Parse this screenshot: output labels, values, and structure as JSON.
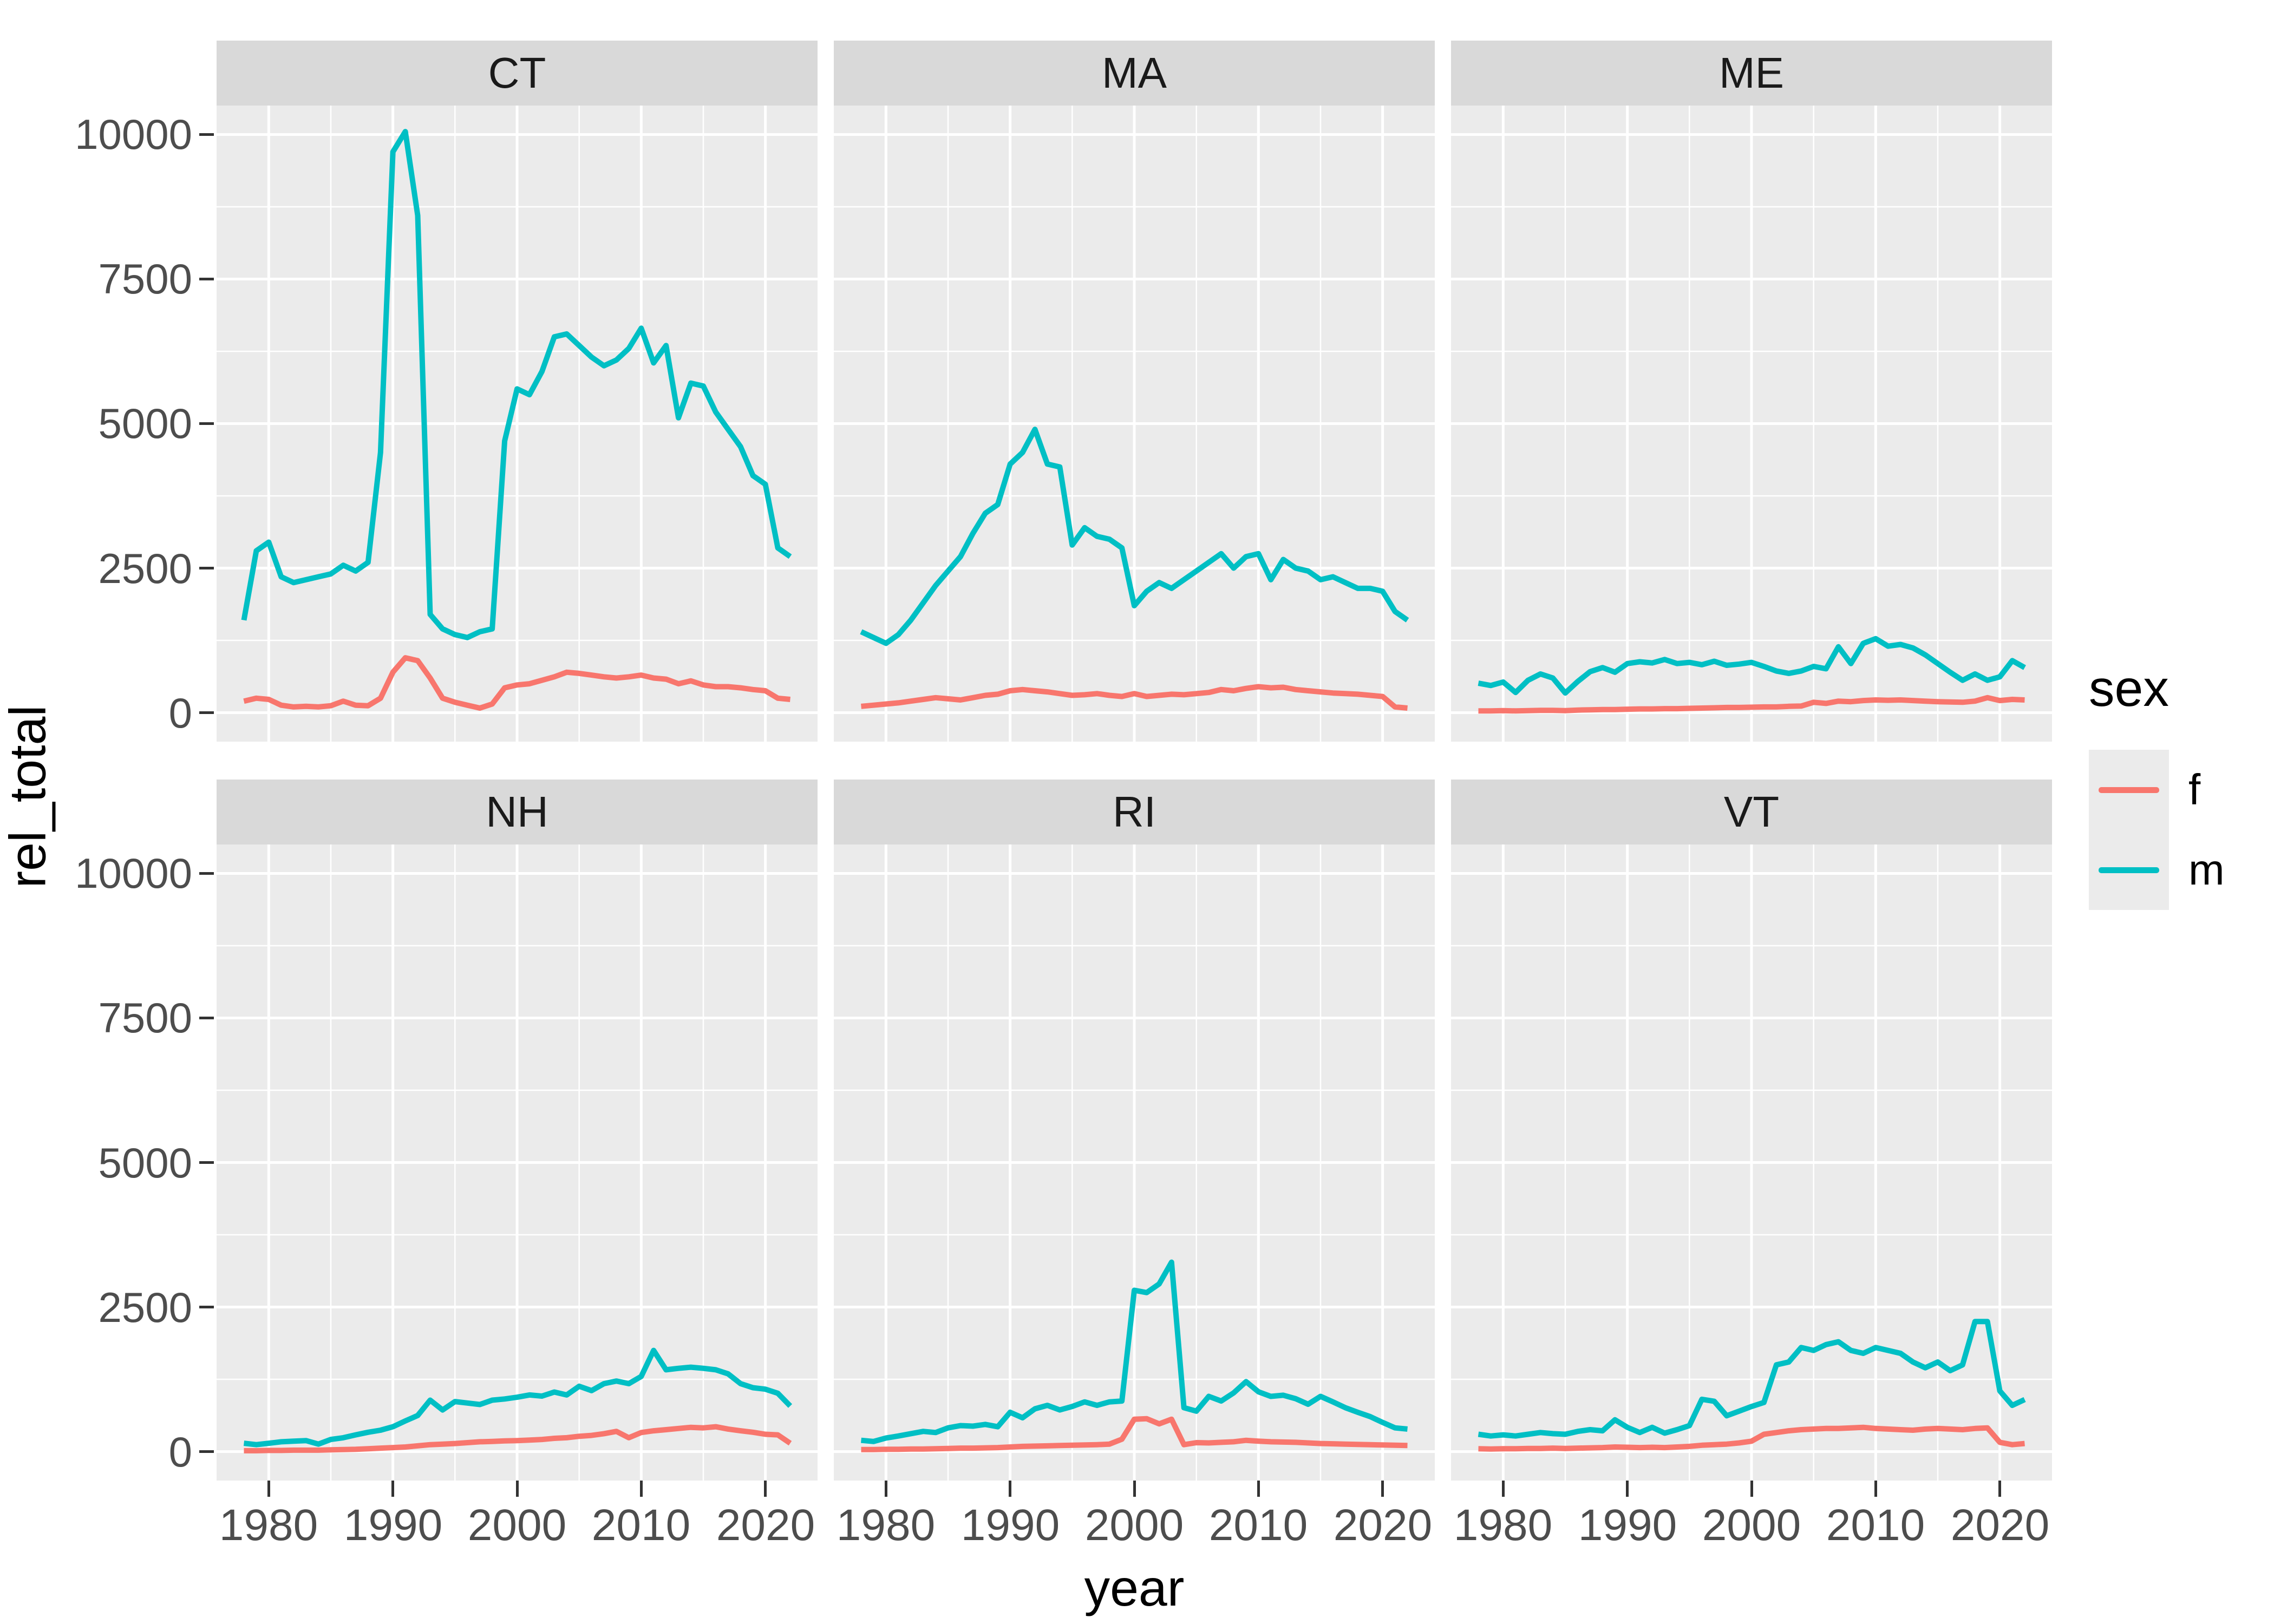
{
  "axes": {
    "x_title": "year",
    "y_title": "rel_total",
    "x_ticks": [
      1980,
      1990,
      2000,
      2010,
      2020
    ],
    "x_tick_labels": [
      "1980",
      "1990",
      "2000",
      "2010",
      "2020"
    ],
    "y_ticks": [
      0,
      2500,
      5000,
      7500,
      10000
    ],
    "y_tick_labels": [
      "0",
      "2500",
      "5000",
      "7500",
      "10000"
    ]
  },
  "legend": {
    "title": "sex",
    "entries": [
      {
        "label": "f",
        "color": "#F8766D"
      },
      {
        "label": "m",
        "color": "#00BFC4"
      }
    ]
  },
  "colors": {
    "panel_bg": "#EBEBEB",
    "strip_bg": "#D9D9D9",
    "gridline": "#FFFFFF",
    "tick_text": "#4D4D4D",
    "tick_mark": "#333333",
    "f": "#F8766D",
    "m": "#00BFC4"
  },
  "chart_data": {
    "type": "line",
    "title": "",
    "xlabel": "year",
    "ylabel": "rel_total",
    "ylim": [
      0,
      10000
    ],
    "x_range": [
      1978,
      2022
    ],
    "grid": "major+minor white on grey panel",
    "legend_position": "right",
    "x_grid_major": [
      1980,
      1990,
      2000,
      2010,
      2020
    ],
    "x_grid_minor": [
      1985,
      1995,
      2005,
      2015
    ],
    "y_grid_major": [
      0,
      2500,
      5000,
      7500,
      10000
    ],
    "y_grid_minor": [
      1250,
      3750,
      6250,
      8750
    ],
    "years": [
      1978,
      1979,
      1980,
      1981,
      1982,
      1983,
      1984,
      1985,
      1986,
      1987,
      1988,
      1989,
      1990,
      1991,
      1992,
      1993,
      1994,
      1995,
      1996,
      1997,
      1998,
      1999,
      2000,
      2001,
      2002,
      2003,
      2004,
      2005,
      2006,
      2007,
      2008,
      2009,
      2010,
      2011,
      2012,
      2013,
      2014,
      2015,
      2016,
      2017,
      2018,
      2019,
      2020,
      2021,
      2022
    ],
    "facets": [
      {
        "label": "CT",
        "series": [
          {
            "name": "f",
            "color": "#F8766D",
            "values": [
              200,
              250,
              230,
              130,
              100,
              110,
              100,
              120,
              200,
              130,
              120,
              250,
              700,
              950,
              900,
              600,
              250,
              180,
              130,
              80,
              150,
              430,
              480,
              500,
              560,
              620,
              700,
              680,
              650,
              620,
              600,
              620,
              650,
              600,
              580,
              500,
              550,
              480,
              450,
              450,
              430,
              400,
              380,
              250,
              230
            ]
          },
          {
            "name": "m",
            "color": "#00BFC4",
            "values": [
              1600,
              2800,
              2950,
              2350,
              2250,
              2300,
              2350,
              2400,
              2550,
              2450,
              2600,
              4500,
              9700,
              10050,
              8600,
              1700,
              1450,
              1350,
              1300,
              1400,
              1450,
              4700,
              5600,
              5500,
              5900,
              6500,
              6550,
              6350,
              6150,
              6000,
              6100,
              6300,
              6650,
              6050,
              6350,
              5100,
              5700,
              5650,
              5200,
              4900,
              4600,
              4100,
              3950,
              2850,
              2700
            ]
          }
        ]
      },
      {
        "label": "MA",
        "series": [
          {
            "name": "f",
            "color": "#F8766D",
            "values": [
              110,
              130,
              150,
              170,
              200,
              230,
              260,
              240,
              220,
              260,
              300,
              320,
              380,
              400,
              380,
              360,
              330,
              300,
              310,
              330,
              300,
              280,
              330,
              280,
              300,
              320,
              310,
              330,
              350,
              400,
              380,
              420,
              450,
              430,
              440,
              400,
              380,
              360,
              340,
              330,
              320,
              300,
              280,
              100,
              80
            ]
          },
          {
            "name": "m",
            "color": "#00BFC4",
            "values": [
              1400,
              1300,
              1200,
              1350,
              1600,
              1900,
              2200,
              2450,
              2700,
              3100,
              3450,
              3600,
              4300,
              4500,
              4900,
              4300,
              4250,
              2900,
              3200,
              3050,
              3000,
              2850,
              1850,
              2100,
              2250,
              2150,
              2300,
              2450,
              2600,
              2750,
              2500,
              2700,
              2750,
              2300,
              2650,
              2500,
              2450,
              2300,
              2350,
              2250,
              2150,
              2150,
              2100,
              1750,
              1600
            ]
          }
        ]
      },
      {
        "label": "ME",
        "series": [
          {
            "name": "f",
            "color": "#F8766D",
            "values": [
              30,
              30,
              35,
              30,
              35,
              40,
              40,
              35,
              45,
              50,
              55,
              55,
              60,
              65,
              65,
              70,
              70,
              75,
              80,
              85,
              90,
              90,
              95,
              100,
              100,
              110,
              115,
              180,
              160,
              200,
              190,
              210,
              220,
              215,
              220,
              210,
              200,
              190,
              185,
              180,
              200,
              260,
              210,
              230,
              220
            ]
          },
          {
            "name": "m",
            "color": "#00BFC4",
            "values": [
              510,
              470,
              530,
              350,
              560,
              670,
              600,
              340,
              540,
              710,
              780,
              700,
              850,
              880,
              860,
              920,
              850,
              870,
              830,
              890,
              820,
              840,
              870,
              800,
              720,
              680,
              720,
              800,
              760,
              1140,
              850,
              1200,
              1280,
              1150,
              1180,
              1120,
              1000,
              850,
              700,
              560,
              670,
              560,
              620,
              900,
              780
            ]
          }
        ]
      },
      {
        "label": "NH",
        "series": [
          {
            "name": "f",
            "color": "#F8766D",
            "values": [
              15,
              15,
              20,
              20,
              25,
              25,
              25,
              30,
              35,
              40,
              50,
              60,
              70,
              80,
              100,
              120,
              130,
              140,
              155,
              170,
              175,
              185,
              190,
              200,
              210,
              230,
              240,
              265,
              280,
              310,
              350,
              240,
              330,
              360,
              380,
              400,
              420,
              410,
              430,
              390,
              360,
              335,
              300,
              290,
              145
            ]
          },
          {
            "name": "m",
            "color": "#00BFC4",
            "values": [
              145,
              120,
              145,
              170,
              180,
              190,
              130,
              210,
              240,
              290,
              335,
              370,
              430,
              530,
              625,
              890,
              720,
              865,
              840,
              815,
              890,
              910,
              940,
              980,
              960,
              1030,
              980,
              1130,
              1055,
              1175,
              1220,
              1175,
              1300,
              1750,
              1415,
              1440,
              1460,
              1440,
              1415,
              1345,
              1175,
              1105,
              1080,
              1010,
              790
            ]
          }
        ]
      },
      {
        "label": "RI",
        "series": [
          {
            "name": "f",
            "color": "#F8766D",
            "values": [
              35,
              35,
              40,
              40,
              45,
              45,
              50,
              55,
              60,
              60,
              65,
              70,
              80,
              90,
              95,
              100,
              105,
              110,
              115,
              120,
              130,
              215,
              560,
              570,
              480,
              560,
              120,
              155,
              150,
              160,
              170,
              195,
              180,
              170,
              165,
              160,
              150,
              140,
              135,
              130,
              125,
              120,
              115,
              110,
              105
            ]
          },
          {
            "name": "m",
            "color": "#00BFC4",
            "values": [
              195,
              175,
              235,
              270,
              310,
              350,
              330,
              410,
              450,
              440,
              470,
              430,
              680,
              585,
              740,
              800,
              720,
              780,
              860,
              800,
              860,
              875,
              2790,
              2750,
              2900,
              3275,
              760,
              700,
              955,
              875,
              1015,
              1210,
              1035,
              955,
              975,
              915,
              820,
              955,
              860,
              760,
              680,
              605,
              505,
              410,
              390
            ]
          }
        ]
      },
      {
        "label": "VT",
        "series": [
          {
            "name": "f",
            "color": "#F8766D",
            "values": [
              50,
              45,
              50,
              50,
              55,
              55,
              60,
              55,
              60,
              65,
              70,
              80,
              75,
              70,
              75,
              70,
              80,
              90,
              110,
              120,
              130,
              150,
              180,
              300,
              330,
              360,
              380,
              390,
              400,
              400,
              410,
              420,
              400,
              390,
              380,
              370,
              390,
              400,
              390,
              380,
              400,
              410,
              160,
              120,
              140
            ]
          },
          {
            "name": "m",
            "color": "#00BFC4",
            "values": [
              300,
              270,
              290,
              270,
              300,
              330,
              310,
              300,
              350,
              380,
              360,
              550,
              420,
              330,
              420,
              320,
              380,
              450,
              905,
              870,
              620,
              700,
              780,
              850,
              1500,
              1550,
              1800,
              1750,
              1850,
              1900,
              1750,
              1700,
              1800,
              1750,
              1700,
              1550,
              1450,
              1550,
              1400,
              1500,
              2250,
              2250,
              1050,
              800,
              900
            ]
          }
        ]
      }
    ]
  }
}
